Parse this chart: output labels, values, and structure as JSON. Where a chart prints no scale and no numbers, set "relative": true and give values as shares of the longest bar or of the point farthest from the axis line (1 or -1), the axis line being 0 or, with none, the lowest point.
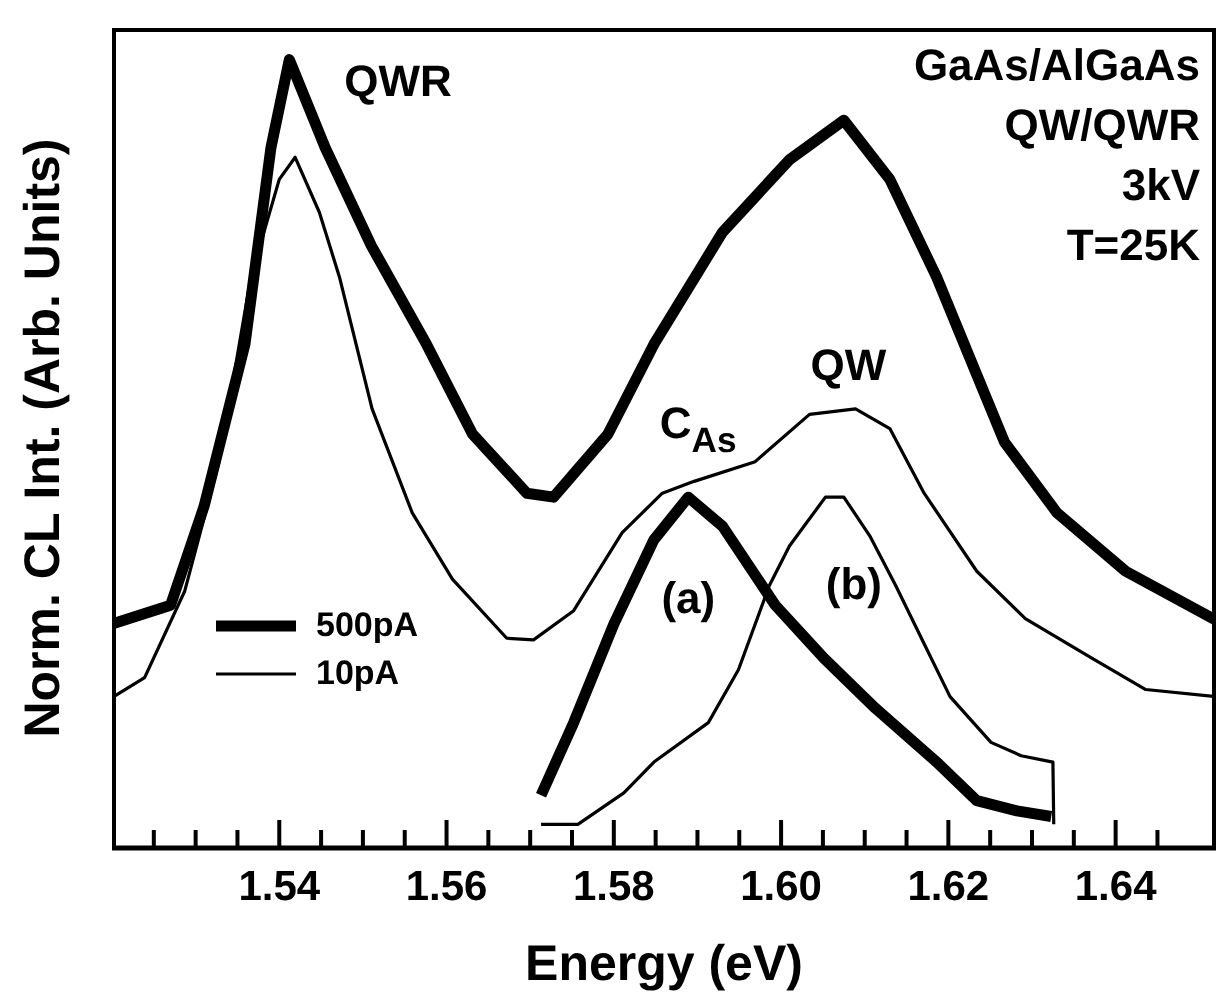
{
  "chart_data": {
    "type": "line",
    "relative": true,
    "xlabel": "Energy (eV)",
    "ylabel": "Norm. CL Int. (Arb. Units)",
    "xlim": [
      1.52,
      1.652
    ],
    "xticks": [
      {
        "value": 1.525,
        "label": null
      },
      {
        "value": 1.53,
        "label": null
      },
      {
        "value": 1.535,
        "label": null
      },
      {
        "value": 1.54,
        "label": "1.54"
      },
      {
        "value": 1.545,
        "label": null
      },
      {
        "value": 1.55,
        "label": null
      },
      {
        "value": 1.555,
        "label": null
      },
      {
        "value": 1.56,
        "label": "1.56"
      },
      {
        "value": 1.565,
        "label": null
      },
      {
        "value": 1.57,
        "label": null
      },
      {
        "value": 1.575,
        "label": null
      },
      {
        "value": 1.58,
        "label": "1.58"
      },
      {
        "value": 1.585,
        "label": null
      },
      {
        "value": 1.59,
        "label": null
      },
      {
        "value": 1.595,
        "label": null
      },
      {
        "value": 1.6,
        "label": "1.60"
      },
      {
        "value": 1.605,
        "label": null
      },
      {
        "value": 1.61,
        "label": null
      },
      {
        "value": 1.615,
        "label": null
      },
      {
        "value": 1.62,
        "label": "1.62"
      },
      {
        "value": 1.625,
        "label": null
      },
      {
        "value": 1.63,
        "label": null
      },
      {
        "value": 1.635,
        "label": null
      },
      {
        "value": 1.64,
        "label": "1.64"
      },
      {
        "value": 1.645,
        "label": null
      }
    ],
    "legend": "bottom left",
    "marker": "none",
    "line_style": "solid",
    "series": [
      {
        "name": "500pA",
        "color": "#000000",
        "x": [
          1.52,
          1.527,
          1.531,
          1.5359,
          1.539,
          1.5412,
          1.5455,
          1.551,
          1.5576,
          1.5631,
          1.5696,
          1.5728,
          1.5793,
          1.5848,
          1.593,
          1.601,
          1.6075,
          1.613,
          1.6186,
          1.6234,
          1.6267,
          1.633,
          1.6412,
          1.652
        ],
        "values": [
          0.284,
          0.308,
          0.433,
          0.639,
          0.888,
          1.0,
          0.888,
          0.764,
          0.639,
          0.525,
          0.45,
          0.445,
          0.525,
          0.639,
          0.781,
          0.873,
          0.923,
          0.848,
          0.724,
          0.6,
          0.515,
          0.425,
          0.351,
          0.289
        ]
      },
      {
        "name": "10pA",
        "color": "#000000",
        "x": [
          1.5202,
          1.5239,
          1.5287,
          1.5328,
          1.5366,
          1.54,
          1.5419,
          1.5448,
          1.5472,
          1.5511,
          1.5559,
          1.5607,
          1.5672,
          1.5704,
          1.5752,
          1.581,
          1.5858,
          1.5896,
          1.5969,
          1.6034,
          1.6089,
          1.613,
          1.6171,
          1.6234,
          1.6292,
          1.6371,
          1.6436,
          1.652
        ],
        "values": [
          0.192,
          0.216,
          0.326,
          0.49,
          0.724,
          0.848,
          0.876,
          0.806,
          0.724,
          0.557,
          0.425,
          0.341,
          0.266,
          0.264,
          0.301,
          0.4,
          0.45,
          0.465,
          0.49,
          0.55,
          0.557,
          0.532,
          0.45,
          0.351,
          0.291,
          0.241,
          0.201,
          0.192
        ]
      },
      {
        "color": "#000000",
        "x": [
          1.5713,
          1.5752,
          1.58,
          1.5848,
          1.5889,
          1.593,
          1.5993,
          1.6051,
          1.6113,
          1.6186,
          1.6234,
          1.6282,
          1.6323
        ],
        "values": [
          0.067,
          0.159,
          0.284,
          0.391,
          0.445,
          0.408,
          0.308,
          0.241,
          0.177,
          0.109,
          0.06,
          0.047,
          0.04
        ]
      },
      {
        "color": "#000000",
        "x": [
          1.5713,
          1.5757,
          1.5812,
          1.5848,
          1.5913,
          1.5949,
          1.5986,
          1.601,
          1.6053,
          1.6075,
          1.6106,
          1.6137,
          1.6171,
          1.6202,
          1.6251,
          1.6287,
          1.6325,
          1.6326
        ],
        "values": [
          0.03,
          0.03,
          0.07,
          0.109,
          0.159,
          0.226,
          0.333,
          0.383,
          0.445,
          0.445,
          0.396,
          0.333,
          0.259,
          0.192,
          0.134,
          0.117,
          0.109,
          0.03
        ]
      }
    ],
    "annotations": [
      "QWR",
      "C$_{As}$",
      "QW",
      "(a)",
      "(b)",
      "GaAs/AlGaAs",
      "QW/QWR",
      "3kV",
      "T=25K"
    ]
  }
}
